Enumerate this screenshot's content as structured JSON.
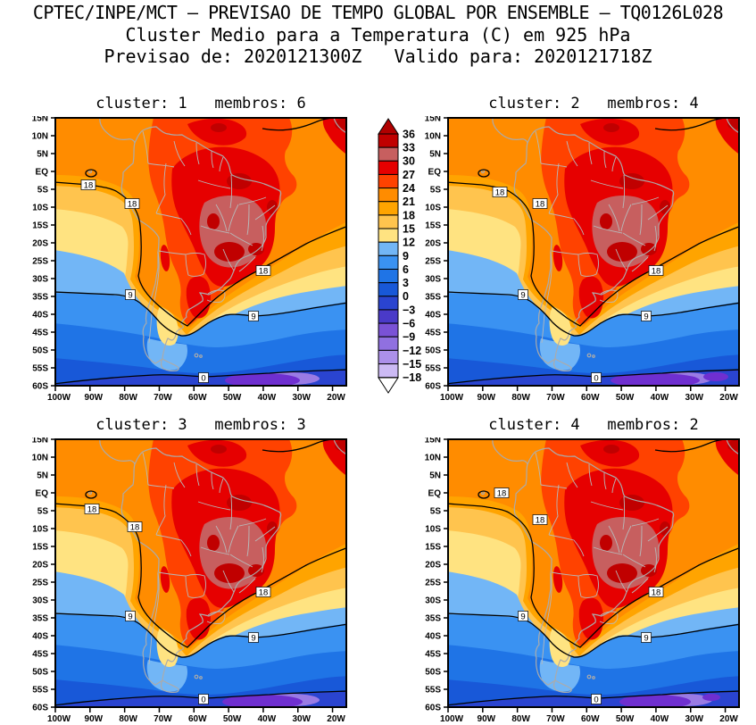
{
  "header": {
    "line1": "CPTEC/INPE/MCT — PREVISAO DE TEMPO GLOBAL POR ENSEMBLE — TQ0126L028",
    "line2": "Cluster Medio para a Temperatura (C) em 925 hPa",
    "line3": "Previsao de: 2020121300Z   Valido para: 2020121718Z"
  },
  "panels": [
    {
      "title": "cluster: 1   membros: 6"
    },
    {
      "title": "cluster: 2   membros: 4"
    },
    {
      "title": "cluster: 3   membros: 3"
    },
    {
      "title": "cluster: 4   membros: 2"
    }
  ],
  "axes": {
    "lat": [
      "15N",
      "10N",
      "5N",
      "EQ",
      "5S",
      "10S",
      "15S",
      "20S",
      "25S",
      "30S",
      "35S",
      "40S",
      "45S",
      "50S",
      "55S",
      "60S"
    ],
    "lon": [
      "100W",
      "90W",
      "80W",
      "70W",
      "60W",
      "50W",
      "40W",
      "30W",
      "20W"
    ]
  },
  "colorbar": {
    "tick_values": [
      "36",
      "33",
      "30",
      "27",
      "24",
      "21",
      "18",
      "15",
      "12",
      "9",
      "6",
      "3",
      "0",
      "−3",
      "−6",
      "−9",
      "−12",
      "−15",
      "−18"
    ],
    "box_colors": [
      "#C00000",
      "#C75F5F",
      "#E60000",
      "#FF4200",
      "#FF8C00",
      "#FFA400",
      "#FFC44E",
      "#FFE381",
      "#72B6F6",
      "#3A92F2",
      "#1F74E6",
      "#1858D8",
      "#2A44D0",
      "#4A3AC8",
      "#7A52D6",
      "#9070E0",
      "#AC90EA",
      "#CCBAF4"
    ],
    "arrow_top_color": "#B00000",
    "arrow_bottom_color": "#FFFFFF"
  },
  "map": {
    "contour_labels": {
      "level18": "18",
      "level9": "9",
      "level0": "0"
    }
  },
  "chart_data": {
    "type": "heatmap",
    "subtype": "filled-contour-map",
    "region": "South America (100W–20W, 60S–15N)",
    "title": "Cluster Medio para a Temperatura (C) em 925 hPa",
    "source_line": "CPTEC/INPE/MCT — PREVISAO DE TEMPO GLOBAL POR ENSEMBLE — TQ0126L028",
    "forecast_init": "2020121300Z",
    "forecast_valid": "2020121718Z",
    "variable": "Temperatura",
    "units": "C",
    "level_hpa": 925,
    "panels": [
      {
        "cluster": 1,
        "membros": 6
      },
      {
        "cluster": 2,
        "membros": 4
      },
      {
        "cluster": 3,
        "membros": 3
      },
      {
        "cluster": 4,
        "membros": 2
      }
    ],
    "x_axis": {
      "label": "longitude",
      "ticks": [
        "100W",
        "90W",
        "80W",
        "70W",
        "60W",
        "50W",
        "40W",
        "30W",
        "20W"
      ]
    },
    "y_axis": {
      "label": "latitude",
      "ticks": [
        "15N",
        "10N",
        "5N",
        "EQ",
        "5S",
        "10S",
        "15S",
        "20S",
        "25S",
        "30S",
        "35S",
        "40S",
        "45S",
        "50S",
        "55S",
        "60S"
      ]
    },
    "colorbar_levels": [
      -18,
      -15,
      -12,
      -9,
      -6,
      -3,
      0,
      3,
      6,
      9,
      12,
      15,
      18,
      21,
      24,
      27,
      30,
      33,
      36
    ],
    "colorbar_colors_low_to_high": [
      "#CCBAF4",
      "#AC90EA",
      "#9070E0",
      "#7A52D6",
      "#4A3AC8",
      "#2A44D0",
      "#1858D8",
      "#1F74E6",
      "#3A92F2",
      "#72B6F6",
      "#FFE381",
      "#FFC44E",
      "#FFA400",
      "#FF8C00",
      "#FF4200",
      "#E60000",
      "#C75F5F",
      "#C00000"
    ],
    "labeled_contour_levels": [
      18,
      9,
      0
    ],
    "legend_position": "between top two panels"
  }
}
